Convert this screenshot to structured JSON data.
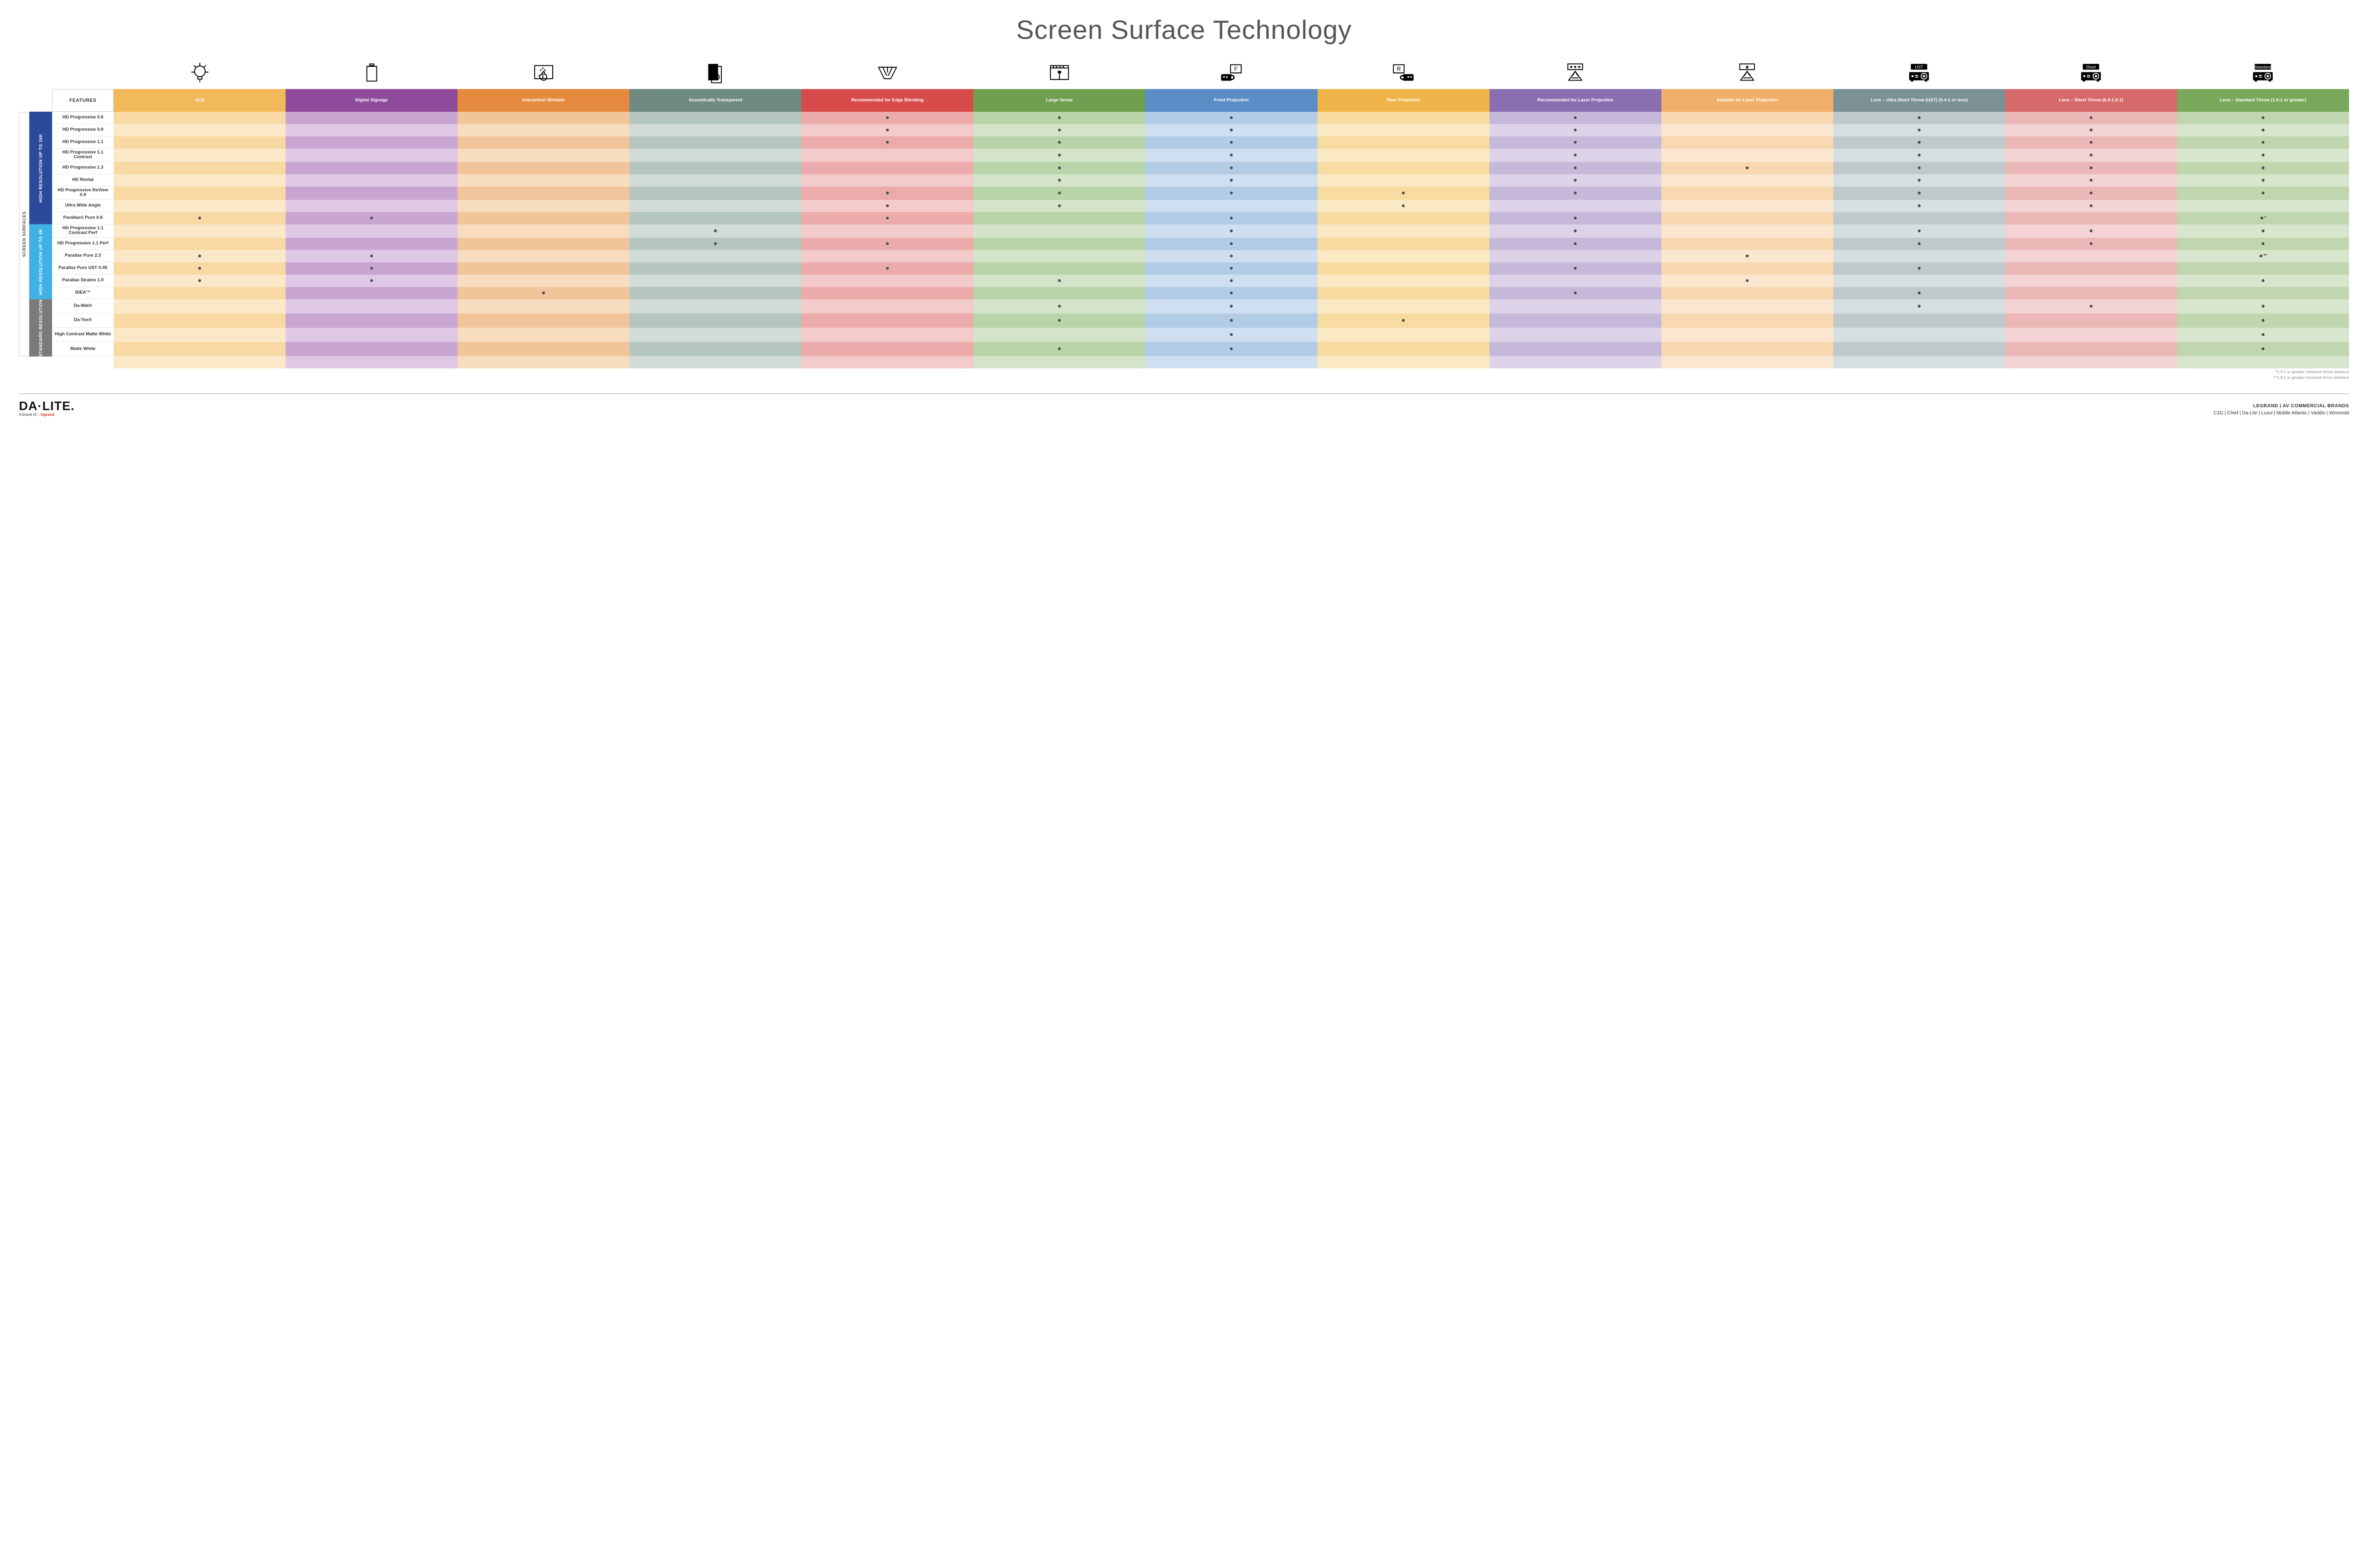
{
  "title": "Screen Surface Technology",
  "features_label": "FEATURES",
  "side_label": "SCREEN SURFACES",
  "colors": {
    "alr": [
      "#f2b95b",
      "#f8d9a4",
      "#fbe8c8"
    ],
    "sig": [
      "#8e4a9b",
      "#c9a6d2",
      "#dfc8e5"
    ],
    "int": [
      "#e58a3f",
      "#f2c499",
      "#f7dcc0"
    ],
    "aco": [
      "#6f8a82",
      "#b5c5bf",
      "#d1dbd7"
    ],
    "edge": [
      "#d84b4b",
      "#ecabab",
      "#f3cbcb"
    ],
    "ven": [
      "#6fa04f",
      "#b9d4a8",
      "#d4e4c8"
    ],
    "fp": [
      "#5a8cc5",
      "#b2cce6",
      "#cfdef0"
    ],
    "rp": [
      "#efb54a",
      "#f8dba0",
      "#fbe9c4"
    ],
    "rlp": [
      "#8a6fb0",
      "#c6b8d9",
      "#ddd3e8"
    ],
    "slp": [
      "#f0b06a",
      "#f8d8b1",
      "#fbe7cf"
    ],
    "ust": [
      "#7c9196",
      "#bfc9cc",
      "#d7dee0"
    ],
    "st": [
      "#d66a6a",
      "#ebb7b7",
      "#f3d3d3"
    ],
    "std": [
      "#7aa85a",
      "#bfd6ae",
      "#d7e6cc"
    ]
  },
  "groups": [
    {
      "key": "g16k",
      "label": "HIGH RESOLUTION UP TO 16K",
      "color": "#2b4a9c",
      "rows": 9
    },
    {
      "key": "g4k",
      "label": "HIGH RESOLUTION UP TO 4K",
      "color": "#3fb1e5",
      "rows": 6
    },
    {
      "key": "gstd",
      "label": "STANDARD RESOLUTION",
      "color": "#7a7a7a",
      "rows": 4
    }
  ],
  "columns": [
    {
      "key": "alr",
      "label": "ALR",
      "icon": "bulb"
    },
    {
      "key": "sig",
      "label": "Digital Signage",
      "icon": "signage"
    },
    {
      "key": "int",
      "label": "Interactive/ Writable",
      "icon": "touch"
    },
    {
      "key": "aco",
      "label": "Acoustically Transparent",
      "icon": "speaker"
    },
    {
      "key": "edge",
      "label": "Recommended for Edge Blending",
      "icon": "edge"
    },
    {
      "key": "ven",
      "label": "Large Venue",
      "icon": "venue"
    },
    {
      "key": "fp",
      "label": "Front Projection",
      "icon": "front"
    },
    {
      "key": "rp",
      "label": "Rear Projection",
      "icon": "rear"
    },
    {
      "key": "rlp",
      "label": "Recommended for Laser Projection",
      "icon": "laser3"
    },
    {
      "key": "slp",
      "label": "Suitable for Laser Projection",
      "icon": "laser1"
    },
    {
      "key": "ust",
      "label": "Lens – Ultra Short Throw (UST) (0.4:1 or less)",
      "icon": "proj",
      "tag": "UST"
    },
    {
      "key": "st",
      "label": "Lens – Short Throw (0.4-1.0:1)",
      "icon": "proj",
      "tag": "Short"
    },
    {
      "key": "std",
      "label": "Lens – Standard Throw (1.0:1 or greater)",
      "icon": "proj",
      "tag": "Standard"
    }
  ],
  "rows": [
    {
      "g": "g16k",
      "name": "HD Progressive 0.6",
      "d": {
        "edge": 1,
        "ven": 1,
        "fp": 1,
        "rlp": 1,
        "ust": 1,
        "st": 1,
        "std": 1
      }
    },
    {
      "g": "g16k",
      "name": "HD Progressive 0.9",
      "d": {
        "edge": 1,
        "ven": 1,
        "fp": 1,
        "rlp": 1,
        "ust": 1,
        "st": 1,
        "std": 1
      }
    },
    {
      "g": "g16k",
      "name": "HD Progressive 1.1",
      "d": {
        "edge": 1,
        "ven": 1,
        "fp": 1,
        "rlp": 1,
        "ust": 1,
        "st": 1,
        "std": 1
      }
    },
    {
      "g": "g16k",
      "name": "HD Progressive 1.1 Contrast",
      "d": {
        "ven": 1,
        "fp": 1,
        "rlp": 1,
        "ust": 1,
        "st": 1,
        "std": 1
      }
    },
    {
      "g": "g16k",
      "name": "HD Progressive 1.3",
      "d": {
        "ven": 1,
        "fp": 1,
        "rlp": 1,
        "slp": 1,
        "ust": 1,
        "st": 1,
        "std": 1
      }
    },
    {
      "g": "g16k",
      "name": "HD Rental",
      "d": {
        "ven": 1,
        "fp": 1,
        "rlp": 1,
        "ust": 1,
        "st": 1,
        "std": 1
      }
    },
    {
      "g": "g16k",
      "name": "HD Progressive ReView 0.9",
      "d": {
        "edge": 1,
        "ven": 1,
        "fp": 1,
        "rp": 1,
        "rlp": 1,
        "ust": 1,
        "st": 1,
        "std": 1
      }
    },
    {
      "g": "g16k",
      "name": "Ultra Wide Angle",
      "d": {
        "edge": 1,
        "ven": 1,
        "rp": 1,
        "ust": 1,
        "st": 1
      }
    },
    {
      "g": "g16k",
      "name": "Parallax® Pure 0.8",
      "d": {
        "alr": 1,
        "sig": 1,
        "edge": 1,
        "fp": 1,
        "rlp": 1,
        "std": "*"
      }
    },
    {
      "g": "g4k",
      "name": "HD Progressive 1.1 Contrast Perf",
      "d": {
        "aco": 1,
        "fp": 1,
        "rlp": 1,
        "ust": 1,
        "st": 1,
        "std": 1
      }
    },
    {
      "g": "g4k",
      "name": "HD Progressive 1.1 Perf",
      "d": {
        "aco": 1,
        "edge": 1,
        "fp": 1,
        "rlp": 1,
        "ust": 1,
        "st": 1,
        "std": 1
      }
    },
    {
      "g": "g4k",
      "name": "Parallax Pure 2.3",
      "d": {
        "alr": 1,
        "sig": 1,
        "fp": 1,
        "slp": 1,
        "std": "**"
      }
    },
    {
      "g": "g4k",
      "name": "Parallax Pure UST 0.45",
      "d": {
        "alr": 1,
        "sig": 1,
        "edge": 1,
        "fp": 1,
        "rlp": 1,
        "ust": 1
      }
    },
    {
      "g": "g4k",
      "name": "Parallax Stratos 1.0",
      "d": {
        "alr": 1,
        "sig": 1,
        "ven": 1,
        "fp": 1,
        "slp": 1,
        "std": 1
      }
    },
    {
      "g": "g4k",
      "name": "IDEA™",
      "d": {
        "int": 1,
        "fp": 1,
        "rlp": 1,
        "ust": 1
      }
    },
    {
      "g": "gstd",
      "name": "Da-Mat®",
      "d": {
        "ven": 1,
        "fp": 1,
        "ust": 1,
        "st": 1,
        "std": 1
      }
    },
    {
      "g": "gstd",
      "name": "Da-Tex®",
      "d": {
        "ven": 1,
        "fp": 1,
        "rp": 1,
        "std": 1
      }
    },
    {
      "g": "gstd",
      "name": "High Contrast Matte White",
      "d": {
        "fp": 1,
        "std": 1
      }
    },
    {
      "g": "gstd",
      "name": "Matte White",
      "d": {
        "ven": 1,
        "fp": 1,
        "std": 1
      }
    }
  ],
  "footnotes": [
    "*1.5:1 or greater minimum throw distance",
    "**1.8:1 or greater minimum throw distance"
  ],
  "footer": {
    "logo_main": "DA·LITE.",
    "logo_sub_pre": "A brand of ",
    "logo_sub_brand": "legrand",
    "brands_title": "LEGRAND | AV COMMERCIAL BRANDS",
    "brands_list": "C2G  |  Chief  |  Da-Lite  |  Luxul  |  Middle Atlantic  |  Vaddio  |  Wiremold"
  }
}
